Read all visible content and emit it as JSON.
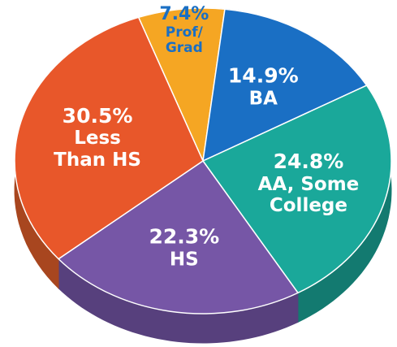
{
  "chart_data": {
    "type": "pie",
    "categories": [
      "Prof/ Grad",
      "BA",
      "AA, Some College",
      "HS",
      "Less Than HS"
    ],
    "values": [
      7.4,
      14.9,
      24.8,
      22.3,
      30.5
    ],
    "value_labels": [
      "7.4%",
      "14.9%",
      "24.8%",
      "22.3%",
      "30.5%"
    ],
    "colors": [
      "#f5a623",
      "#1a6fc4",
      "#1aa89a",
      "#7656a6",
      "#e8572a"
    ],
    "side_colors": [
      "#c07d12",
      "#12518f",
      "#137a70",
      "#57407d",
      "#a8461f"
    ]
  }
}
